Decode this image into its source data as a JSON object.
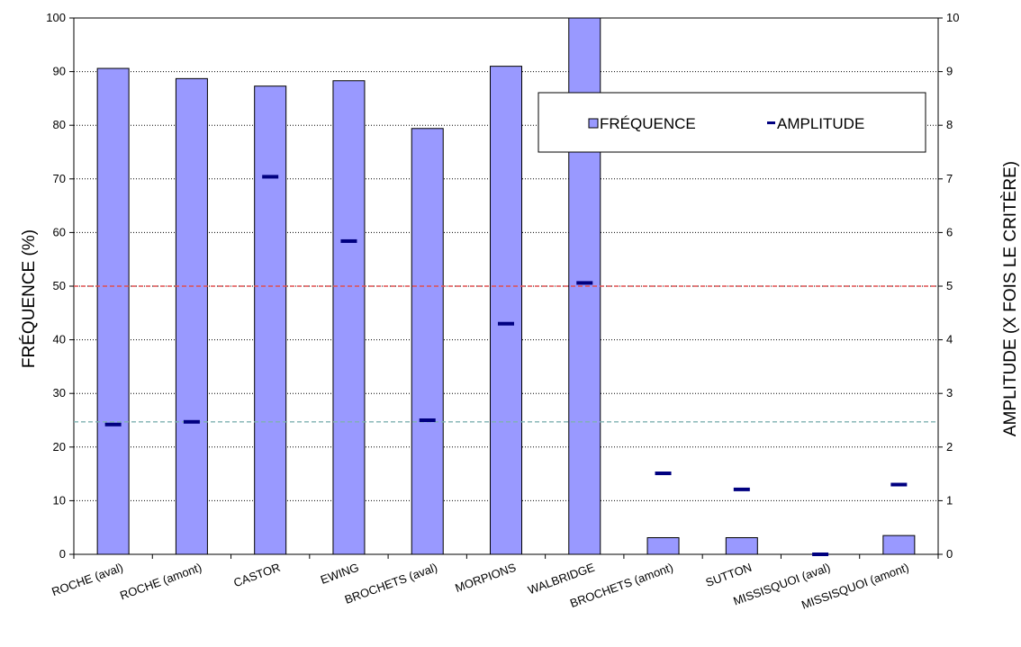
{
  "chart_data": {
    "type": "bar",
    "categories": [
      "ROCHE (aval)",
      "ROCHE (amont)",
      "CASTOR",
      "EWING",
      "BROCHETS (aval)",
      "MORPIONS",
      "WALBRIDGE",
      "BROCHETS (amont)",
      "SUTTON",
      "MISSISQUOI (aval)",
      "MISSISQUOI (amont)"
    ],
    "series": [
      {
        "name": "FRÉQUENCE",
        "axis": "left",
        "kind": "bar",
        "color": "#9999ff",
        "values": [
          90.6,
          88.7,
          87.3,
          88.3,
          79.4,
          91.0,
          100,
          3.1,
          3.1,
          0,
          3.5
        ]
      },
      {
        "name": "AMPLITUDE",
        "axis": "right",
        "kind": "marker",
        "color": "#000080",
        "values": [
          2.42,
          2.47,
          7.04,
          5.84,
          2.5,
          4.3,
          5.06,
          1.51,
          1.21,
          0,
          1.3
        ]
      }
    ],
    "ylabel": "FRÉQUENCE  (%)",
    "y2label": "AMPLITUDE  (X FOIS LE CRITÈRE)",
    "ylim": [
      0,
      100
    ],
    "y2lim": [
      0,
      10
    ],
    "yticks": [
      "0",
      "10",
      "20",
      "30",
      "40",
      "50",
      "60",
      "70",
      "80",
      "90",
      "100"
    ],
    "y2ticks": [
      "0",
      "1",
      "2",
      "3",
      "4",
      "5",
      "6",
      "7",
      "8",
      "9",
      "10"
    ],
    "reference_lines": [
      {
        "axis": "left",
        "value": 50,
        "color": "#e05050",
        "style": "dashed"
      },
      {
        "axis": "left",
        "value": 24.7,
        "color": "#7fb0b0",
        "style": "dashed"
      }
    ],
    "grid": true,
    "legend_position": "top-right"
  }
}
